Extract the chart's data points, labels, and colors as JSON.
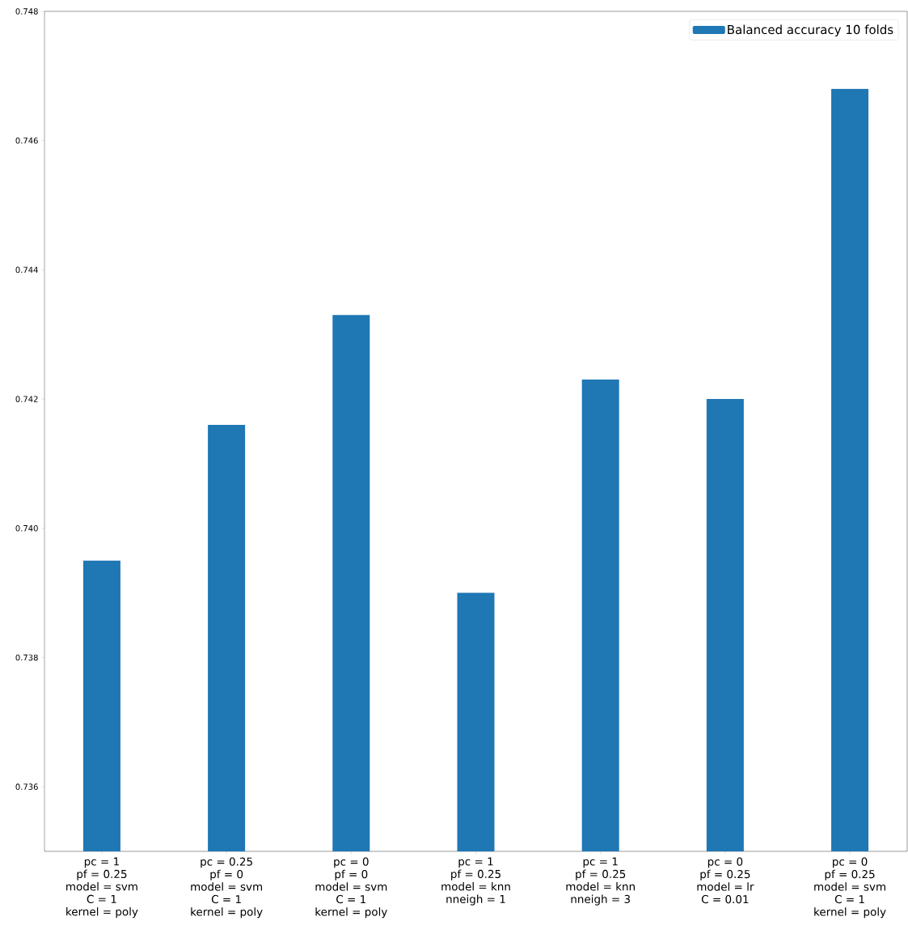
{
  "chart_data": {
    "type": "bar",
    "categories": [
      "pc = 1\npf = 0.25\nmodel = svm\nC = 1\nkernel = poly",
      "pc = 0.25\npf = 0\nmodel = svm\nC = 1\nkernel = poly",
      "pc = 0\npf = 0\nmodel = svm\nC = 1\nkernel = poly",
      "pc = 1\npf = 0.25\nmodel = knn\nnneigh = 1",
      "pc = 1\npf = 0.25\nmodel = knn\nnneigh = 3",
      "pc = 0\npf = 0.25\nmodel = lr\nC = 0.01",
      "pc = 0\npf = 0.25\nmodel = svm\nC = 1\nkernel = poly"
    ],
    "series": [
      {
        "name": "Balanced accuracy 10 folds",
        "color": "#1f77b4",
        "values": [
          0.7395,
          0.7416,
          0.7433,
          0.739,
          0.7423,
          0.742,
          0.7468
        ]
      }
    ],
    "ylim": [
      0.735,
      0.748
    ],
    "yticks": [
      {
        "value": 0.736,
        "label": "0.736"
      },
      {
        "value": 0.738,
        "label": "0.738"
      },
      {
        "value": 0.74,
        "label": "0.740"
      },
      {
        "value": 0.742,
        "label": "0.742"
      },
      {
        "value": 0.744,
        "label": "0.744"
      },
      {
        "value": 0.746,
        "label": "0.746"
      },
      {
        "value": 0.748,
        "label": "0.748"
      }
    ],
    "grid": false,
    "legend": "top right"
  }
}
